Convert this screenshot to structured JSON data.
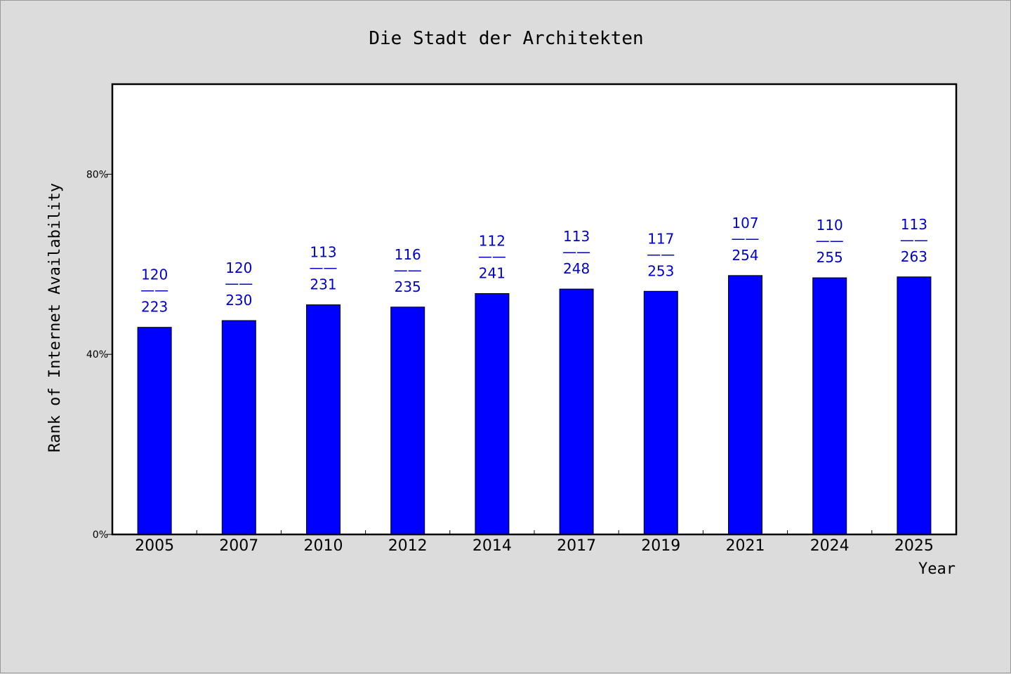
{
  "chart_data": {
    "type": "bar",
    "title": "Die Stadt der Architekten",
    "xlabel": "Year",
    "ylabel": "Rank of Internet Availability",
    "categories": [
      "2005",
      "2007",
      "2010",
      "2012",
      "2014",
      "2017",
      "2019",
      "2021",
      "2024",
      "2025"
    ],
    "values": [
      46,
      47.5,
      51,
      50.5,
      53.5,
      54.5,
      54,
      57.5,
      57,
      57.2
    ],
    "data_labels": [
      {
        "top": "120",
        "sep": "——",
        "bottom": "223"
      },
      {
        "top": "120",
        "sep": "——",
        "bottom": "230"
      },
      {
        "top": "113",
        "sep": "——",
        "bottom": "231"
      },
      {
        "top": "116",
        "sep": "——",
        "bottom": "235"
      },
      {
        "top": "112",
        "sep": "——",
        "bottom": "241"
      },
      {
        "top": "113",
        "sep": "——",
        "bottom": "248"
      },
      {
        "top": "117",
        "sep": "——",
        "bottom": "253"
      },
      {
        "top": "107",
        "sep": "——",
        "bottom": "254"
      },
      {
        "top": "110",
        "sep": "——",
        "bottom": "255"
      },
      {
        "top": "113",
        "sep": "——",
        "bottom": "263"
      }
    ],
    "yticks": [
      {
        "value": 0,
        "label": "0%"
      },
      {
        "value": 40,
        "label": "40%"
      },
      {
        "value": 80,
        "label": "80%"
      }
    ],
    "ylim": [
      0,
      100
    ],
    "grid": false,
    "bar_color": "#0000ff",
    "label_color": "#0000cc"
  }
}
